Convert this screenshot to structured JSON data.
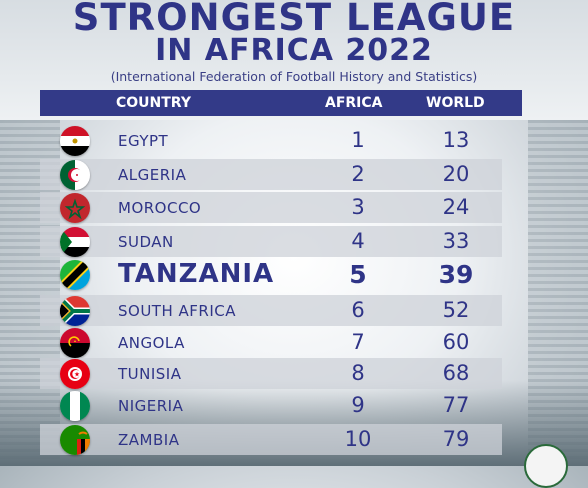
{
  "title_line1": "STRONGEST LEAGUE",
  "title_line2": "IN AFRICA 2022",
  "subtitle": "(International Federation of Football History and Statistics)",
  "header": {
    "country": "COUNTRY",
    "africa": "AFRICA",
    "world": "WORLD"
  },
  "rows": [
    {
      "country": "EGYPT",
      "africa": "1",
      "world": "13",
      "flag": "egypt-flag"
    },
    {
      "country": "ALGERIA",
      "africa": "2",
      "world": "20",
      "flag": "algeria-flag"
    },
    {
      "country": "MOROCCO",
      "africa": "3",
      "world": "24",
      "flag": "morocco-flag"
    },
    {
      "country": "SUDAN",
      "africa": "4",
      "world": "33",
      "flag": "sudan-flag"
    },
    {
      "country": "TANZANIA",
      "africa": "5",
      "world": "39",
      "flag": "tanzania-flag",
      "highlight": true
    },
    {
      "country": "SOUTH AFRICA",
      "africa": "6",
      "world": "52",
      "flag": "south-africa-flag"
    },
    {
      "country": "ANGOLA",
      "africa": "7",
      "world": "60",
      "flag": "angola-flag"
    },
    {
      "country": "TUNISIA",
      "africa": "8",
      "world": "68",
      "flag": "tunisia-flag"
    },
    {
      "country": "NIGERIA",
      "africa": "9",
      "world": "77",
      "flag": "nigeria-flag"
    },
    {
      "country": "ZAMBIA",
      "africa": "10",
      "world": "79",
      "flag": "zambia-flag"
    }
  ],
  "colors": {
    "primary": "#2f3487",
    "header_bg": "#333a88",
    "row_shade": "#cdd2d8"
  }
}
